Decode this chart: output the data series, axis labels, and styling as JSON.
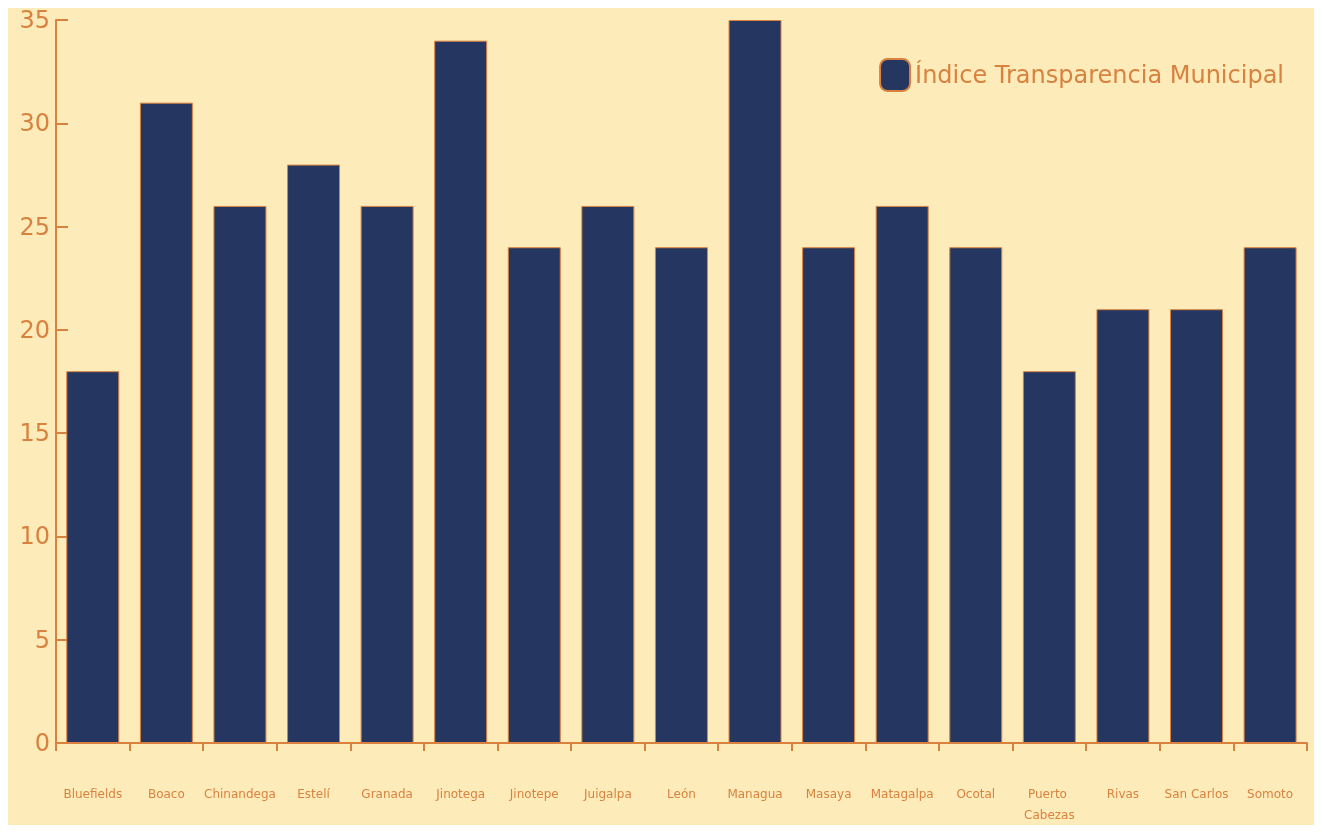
{
  "chart_data": {
    "type": "bar",
    "categories": [
      "Bluefields",
      "Boaco",
      "Chinandega",
      "Estelí",
      "Granada",
      "Jinotega",
      "Jinotepe",
      "Juigalpa",
      "León",
      "Managua",
      "Masaya",
      "Matagalpa",
      "Ocotal",
      "Puerto Cabezas",
      "Rivas",
      "San Carlos",
      "Somoto"
    ],
    "series": [
      {
        "name": "Índice Transparencia Municipal",
        "color": "#253761",
        "values": [
          18,
          31,
          26,
          28,
          26,
          34,
          24,
          26,
          24,
          35,
          24,
          26,
          24,
          18,
          21,
          21,
          24
        ]
      }
    ],
    "ylim": [
      0,
      35
    ],
    "yticks": [
      0,
      5,
      10,
      15,
      20,
      25,
      30,
      35
    ],
    "grid": false,
    "legend": "top right"
  }
}
